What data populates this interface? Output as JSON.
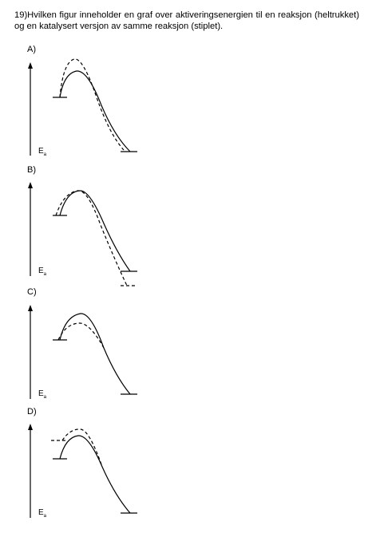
{
  "question": {
    "text": "19)Hvilken figur inneholder en graf over aktiveringsenergien til en reaksjon (heltrukket) og en katalysert versjon av samme reaksjon (stiplet)."
  },
  "options": [
    {
      "label": "A)",
      "axis": "E",
      "axis_sub": "a"
    },
    {
      "label": "B)",
      "axis": "E",
      "axis_sub": "a"
    },
    {
      "label": "C)",
      "axis": "E",
      "axis_sub": "a"
    },
    {
      "label": "D)",
      "axis": "E",
      "axis_sub": "a"
    }
  ]
}
